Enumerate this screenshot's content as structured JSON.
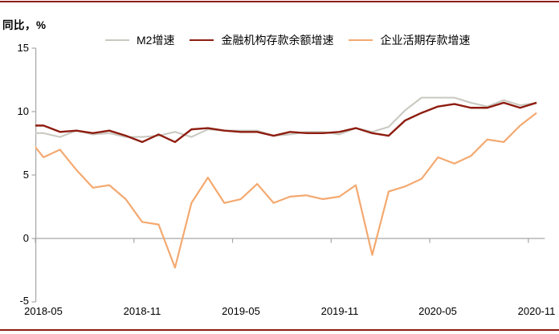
{
  "header": {
    "unit_label": "同比，%"
  },
  "style": {
    "accent_rule_color": "#8E1D10",
    "axis_color": "#A6A6A6",
    "text_color": "#000000",
    "background": "#FFFFFF"
  },
  "chart_data": {
    "type": "line",
    "title": "",
    "unit_label": "同比，%",
    "xlabel": "",
    "ylabel": "同比，%",
    "ylim": [
      -5,
      15
    ],
    "y_ticks": [
      15,
      10,
      5,
      0,
      -5
    ],
    "y_tick_labels": [
      "15",
      "10",
      "5",
      "0",
      "-5"
    ],
    "x_tick_labels": [
      "2018-05",
      "2018-11",
      "2019-05",
      "2019-11",
      "2020-05",
      "2020-11"
    ],
    "grid": "zero-line-only",
    "legend_position": "top-center",
    "first_point_clipped_at_axis": true,
    "x": [
      "2018-04",
      "2018-05",
      "2018-06",
      "2018-07",
      "2018-08",
      "2018-09",
      "2018-10",
      "2018-11",
      "2018-12",
      "2019-01",
      "2019-02",
      "2019-03",
      "2019-04",
      "2019-05",
      "2019-06",
      "2019-07",
      "2019-08",
      "2019-09",
      "2019-10",
      "2019-11",
      "2019-12",
      "2020-01",
      "2020-02",
      "2020-03",
      "2020-04",
      "2020-05",
      "2020-06",
      "2020-07",
      "2020-08",
      "2020-09",
      "2020-10",
      "2020-11"
    ],
    "series": [
      {
        "name": "M2增速",
        "color": "#C9C9C1",
        "stroke_width": 2.1,
        "values": [
          8.3,
          8.3,
          8.0,
          8.5,
          8.2,
          8.3,
          8.0,
          8.0,
          8.1,
          8.4,
          8.0,
          8.6,
          8.5,
          8.5,
          8.5,
          8.1,
          8.2,
          8.4,
          8.4,
          8.2,
          8.7,
          8.4,
          8.8,
          10.1,
          11.1,
          11.1,
          11.1,
          10.7,
          10.4,
          10.9,
          10.5,
          10.7
        ]
      },
      {
        "name": "金融机构存款余额增速",
        "color": "#8E1D10",
        "stroke_width": 2.4,
        "values": [
          8.9,
          8.9,
          8.4,
          8.5,
          8.3,
          8.5,
          8.1,
          7.6,
          8.2,
          7.6,
          8.6,
          8.7,
          8.5,
          8.4,
          8.4,
          8.1,
          8.4,
          8.3,
          8.3,
          8.4,
          8.7,
          8.3,
          8.1,
          9.3,
          9.9,
          10.4,
          10.6,
          10.3,
          10.3,
          10.7,
          10.3,
          10.7
        ]
      },
      {
        "name": "企业活期存款增速",
        "color": "#F4A970",
        "stroke_width": 2.2,
        "values": [
          8.0,
          6.4,
          7.0,
          5.4,
          4.0,
          4.2,
          3.1,
          1.3,
          1.1,
          -2.3,
          2.8,
          4.8,
          2.8,
          3.1,
          4.3,
          2.8,
          3.3,
          3.4,
          3.1,
          3.3,
          4.2,
          -1.3,
          3.7,
          4.1,
          4.7,
          6.4,
          5.9,
          6.5,
          7.8,
          7.6,
          8.9,
          9.9
        ]
      }
    ]
  }
}
